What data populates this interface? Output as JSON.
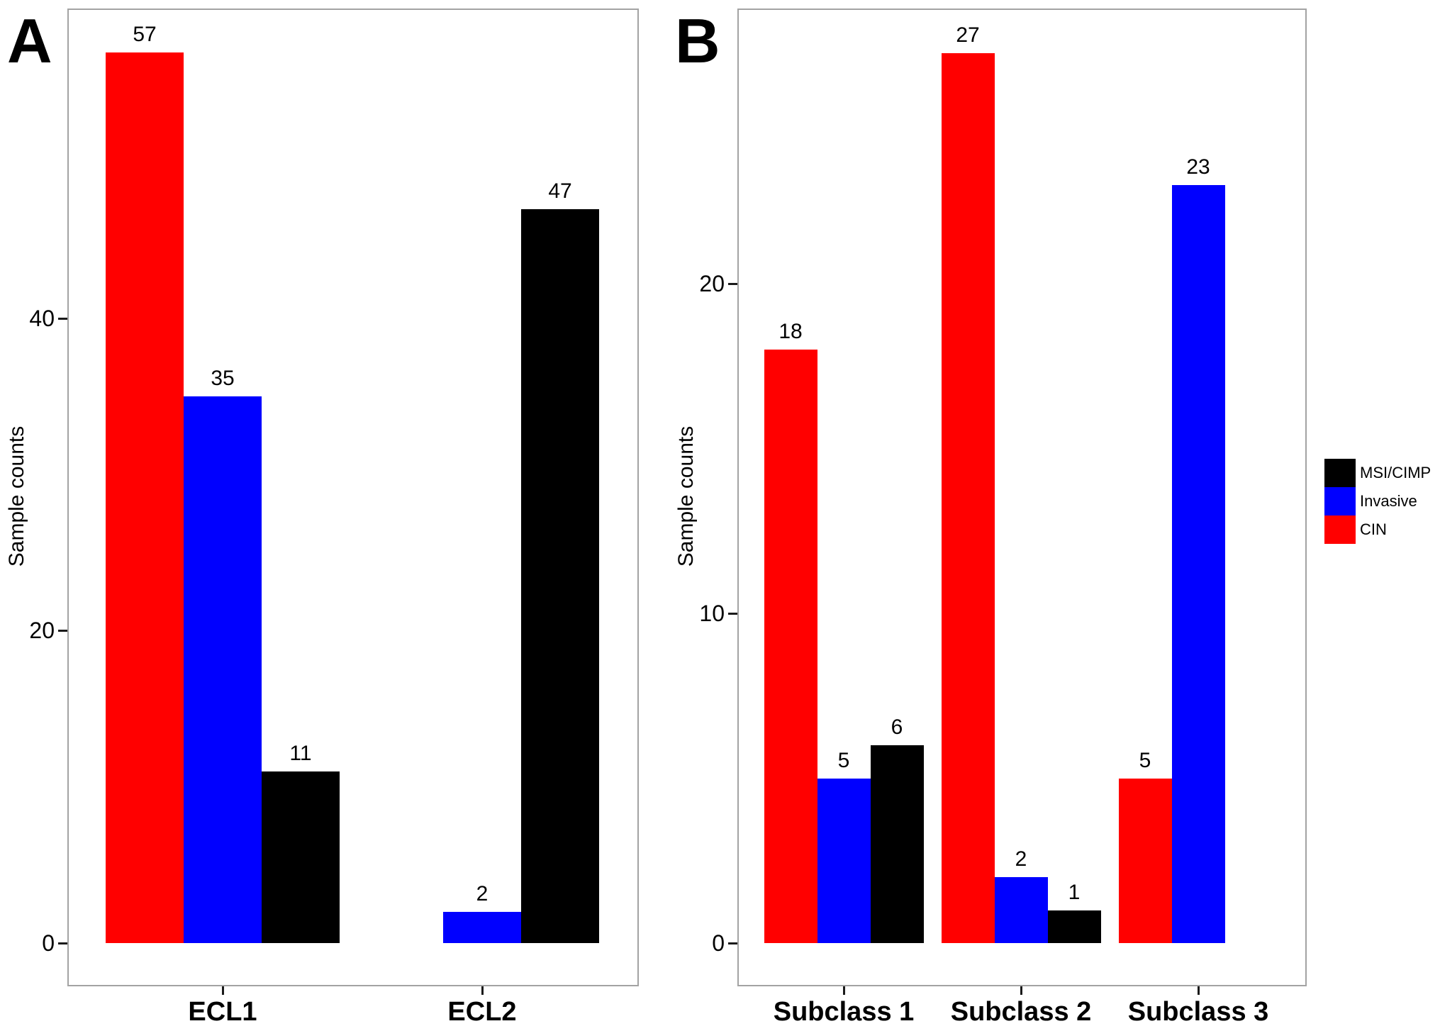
{
  "chart_data": [
    {
      "type": "bar",
      "panel": "A",
      "title": "",
      "xlabel": "",
      "ylabel": "Sample counts",
      "categories": [
        "ECL1",
        "ECL2"
      ],
      "series": [
        {
          "name": "CIN",
          "color": "#ff0000",
          "values": [
            57,
            0
          ]
        },
        {
          "name": "Invasive",
          "color": "#0000ff",
          "values": [
            35,
            2
          ]
        },
        {
          "name": "MSI/CIMP",
          "color": "#000000",
          "values": [
            11,
            47
          ]
        }
      ],
      "yticks": [
        0,
        20,
        40
      ],
      "ylim": [
        0,
        60
      ],
      "grid": false,
      "bar_value_labels": true,
      "legend_position": "none"
    },
    {
      "type": "bar",
      "panel": "B",
      "title": "",
      "xlabel": "",
      "ylabel": "Sample counts",
      "categories": [
        "Subclass 1",
        "Subclass 2",
        "Subclass 3"
      ],
      "series": [
        {
          "name": "CIN",
          "color": "#ff0000",
          "values": [
            18,
            27,
            5
          ]
        },
        {
          "name": "Invasive",
          "color": "#0000ff",
          "values": [
            5,
            2,
            23
          ]
        },
        {
          "name": "MSI/CIMP",
          "color": "#000000",
          "values": [
            6,
            1,
            0
          ]
        }
      ],
      "yticks": [
        0,
        10,
        20
      ],
      "ylim": [
        0,
        28.5
      ],
      "grid": false,
      "bar_value_labels": true,
      "legend_position": "right"
    }
  ],
  "legend": {
    "items": [
      {
        "label": "MSI/CIMP",
        "color": "#000000"
      },
      {
        "label": "Invasive",
        "color": "#0000ff"
      },
      {
        "label": "CIN",
        "color": "#ff0000"
      }
    ]
  },
  "colors": {
    "cin": "#ff0000",
    "invasive": "#0000ff",
    "msi_cimp": "#000000",
    "panel_border": "#a3a3a3",
    "background": "#ffffff"
  }
}
